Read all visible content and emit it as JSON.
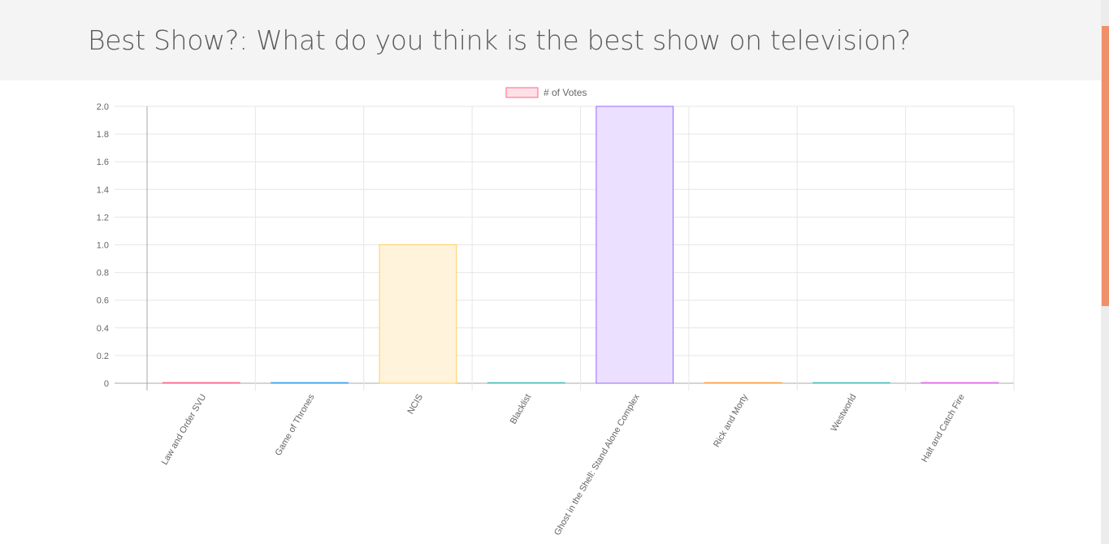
{
  "page": {
    "title": "Best Show?: What do you think is the best show on television?"
  },
  "colors": {
    "accent_scrollbar": "#f0906a",
    "header_bg": "#f4f4f4"
  },
  "chart_data": {
    "type": "bar",
    "categories": [
      "Law and Order SVU",
      "Game of Thrones",
      "NCIS",
      "Blacklist",
      "Ghost in the Shell: Stand Alone Complex",
      "Rick and Morty",
      "Westworld",
      "Halt and Catch Fire"
    ],
    "series": [
      {
        "name": "# of Votes",
        "values": [
          0,
          0,
          1,
          0,
          2,
          0,
          0,
          0
        ],
        "fill_colors": [
          "#ffe0e6",
          "#d7ecfb",
          "#fff3dc",
          "#dbf2f2",
          "#ebe0ff",
          "#ffecd9",
          "#dbf2f2",
          "#f7e0fc"
        ],
        "border_colors": [
          "#ff6384",
          "#36a2eb",
          "#ffce56",
          "#4bc0c0",
          "#9966ff",
          "#ff9f40",
          "#4bc0c0",
          "#e066e8"
        ]
      }
    ],
    "legend_swatch": {
      "fill": "#ffe0e6",
      "border": "#ff6384"
    },
    "ylim": [
      0,
      2
    ],
    "yticks": [
      "2.0",
      "1.8",
      "1.6",
      "1.4",
      "1.2",
      "1.0",
      "0.8",
      "0.6",
      "0.4",
      "0.2",
      "0"
    ],
    "grid": true,
    "legend": "top-center"
  }
}
